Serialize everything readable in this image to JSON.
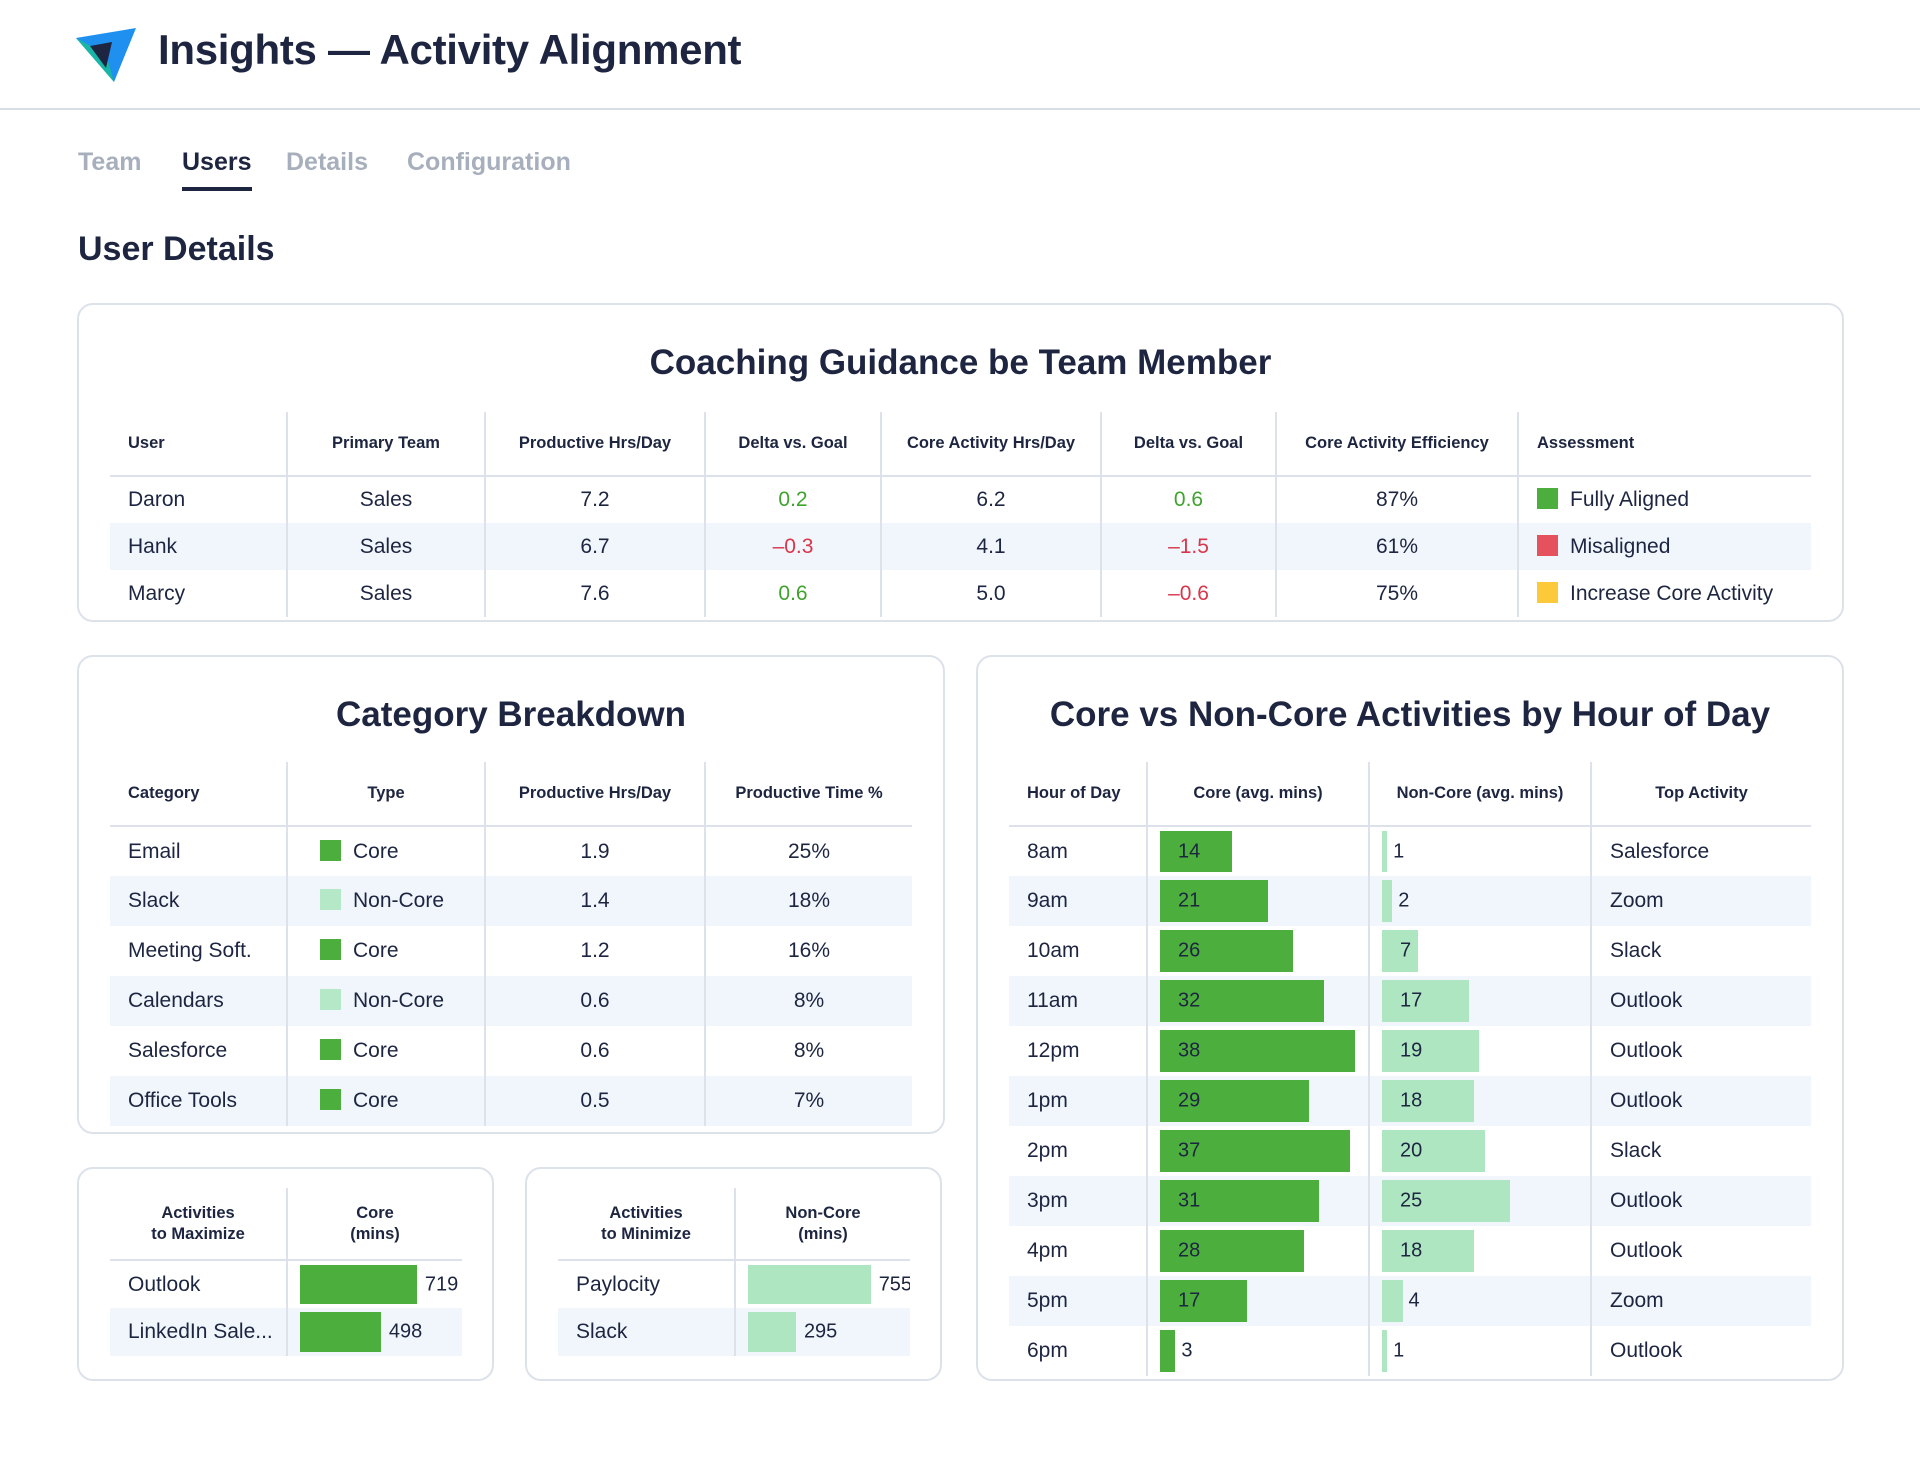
{
  "app": {
    "title": "Insights — Activity Alignment",
    "logo_icon": "paper-plane-logo",
    "colors": {
      "logo_blue": "#1f8ff0",
      "logo_teal": "#18b6a6",
      "logo_dark": "#1d2540"
    }
  },
  "tabs": [
    {
      "label": "Team",
      "active": false
    },
    {
      "label": "Users",
      "active": true
    },
    {
      "label": "Details",
      "active": false
    },
    {
      "label": "Configuration",
      "active": false
    }
  ],
  "section_title": "User Details",
  "coaching": {
    "title": "Coaching Guidance be Team Member",
    "headers": [
      "User",
      "Primary Team",
      "Productive Hrs/Day",
      "Delta vs. Goal",
      "Core Activity Hrs/Day",
      "Delta vs. Goal",
      "Core Activity Efficiency",
      "Assessment"
    ],
    "rows": [
      {
        "user": "Daron",
        "team": "Sales",
        "prod": "7.2",
        "delta1": "0.2",
        "delta1_sign": "pos",
        "core": "6.2",
        "delta2": "0.6",
        "delta2_sign": "pos",
        "eff": "87%",
        "assessment": "Fully Aligned",
        "status": "green"
      },
      {
        "user": "Hank",
        "team": "Sales",
        "prod": "6.7",
        "delta1": "–0.3",
        "delta1_sign": "neg",
        "core": "4.1",
        "delta2": "–1.5",
        "delta2_sign": "neg",
        "eff": "61%",
        "assessment": "Misaligned",
        "status": "red"
      },
      {
        "user": "Marcy",
        "team": "Sales",
        "prod": "7.6",
        "delta1": "0.6",
        "delta1_sign": "pos",
        "core": "5.0",
        "delta2": "–0.6",
        "delta2_sign": "neg",
        "eff": "75%",
        "assessment": "Increase Core Activity",
        "status": "yellow"
      }
    ],
    "colors": {
      "green": "#4caf3d",
      "red": "#e5525e",
      "yellow": "#fbc93a",
      "positive": "#3fa32e",
      "negative": "#d9364b"
    }
  },
  "category": {
    "title": "Category Breakdown",
    "headers": [
      "Category",
      "Type",
      "Productive Hrs/Day",
      "Productive Time %"
    ],
    "rows": [
      {
        "category": "Email",
        "type": "Core",
        "hrs": "1.9",
        "pct": "25%"
      },
      {
        "category": "Slack",
        "type": "Non-Core",
        "hrs": "1.4",
        "pct": "18%"
      },
      {
        "category": "Meeting Soft.",
        "type": "Core",
        "hrs": "1.2",
        "pct": "16%"
      },
      {
        "category": "Calendars",
        "type": "Non-Core",
        "hrs": "0.6",
        "pct": "8%"
      },
      {
        "category": "Salesforce",
        "type": "Core",
        "hrs": "0.6",
        "pct": "8%"
      },
      {
        "category": "Office Tools",
        "type": "Core",
        "hrs": "0.5",
        "pct": "7%"
      }
    ]
  },
  "maximize": {
    "headers": [
      "Activities\nto Maximize",
      "Core\n(mins)"
    ],
    "max": 800,
    "rows": [
      {
        "name": "Outlook",
        "value": 719
      },
      {
        "name": "LinkedIn Sale...",
        "value": 498
      }
    ]
  },
  "minimize": {
    "headers": [
      "Activities\nto Minimize",
      "Non-Core\n(mins)"
    ],
    "max": 800,
    "rows": [
      {
        "name": "Paylocity",
        "value": 755
      },
      {
        "name": "Slack",
        "value": 295
      }
    ]
  },
  "chart_data": {
    "type": "table",
    "title": "Core vs Non-Core Activities by Hour of Day",
    "headers": [
      "Hour of Day",
      "Core (avg. mins)",
      "Non-Core (avg. mins)",
      "Top Activity"
    ],
    "categories": [
      "8am",
      "9am",
      "10am",
      "11am",
      "12pm",
      "1pm",
      "2pm",
      "3pm",
      "4pm",
      "5pm",
      "6pm"
    ],
    "series": [
      {
        "name": "Core (avg. mins)",
        "values": [
          14,
          21,
          26,
          32,
          38,
          29,
          37,
          31,
          28,
          17,
          3
        ]
      },
      {
        "name": "Non-Core (avg. mins)",
        "values": [
          1,
          2,
          7,
          17,
          19,
          18,
          20,
          25,
          18,
          4,
          1
        ]
      }
    ],
    "top_activity": [
      "Salesforce",
      "Zoom",
      "Slack",
      "Outlook",
      "Outlook",
      "Outlook",
      "Slack",
      "Outlook",
      "Outlook",
      "Zoom",
      "Outlook"
    ],
    "max": 40,
    "colors": {
      "core": "#4caf3d",
      "non_core": "#ade6c0"
    }
  }
}
